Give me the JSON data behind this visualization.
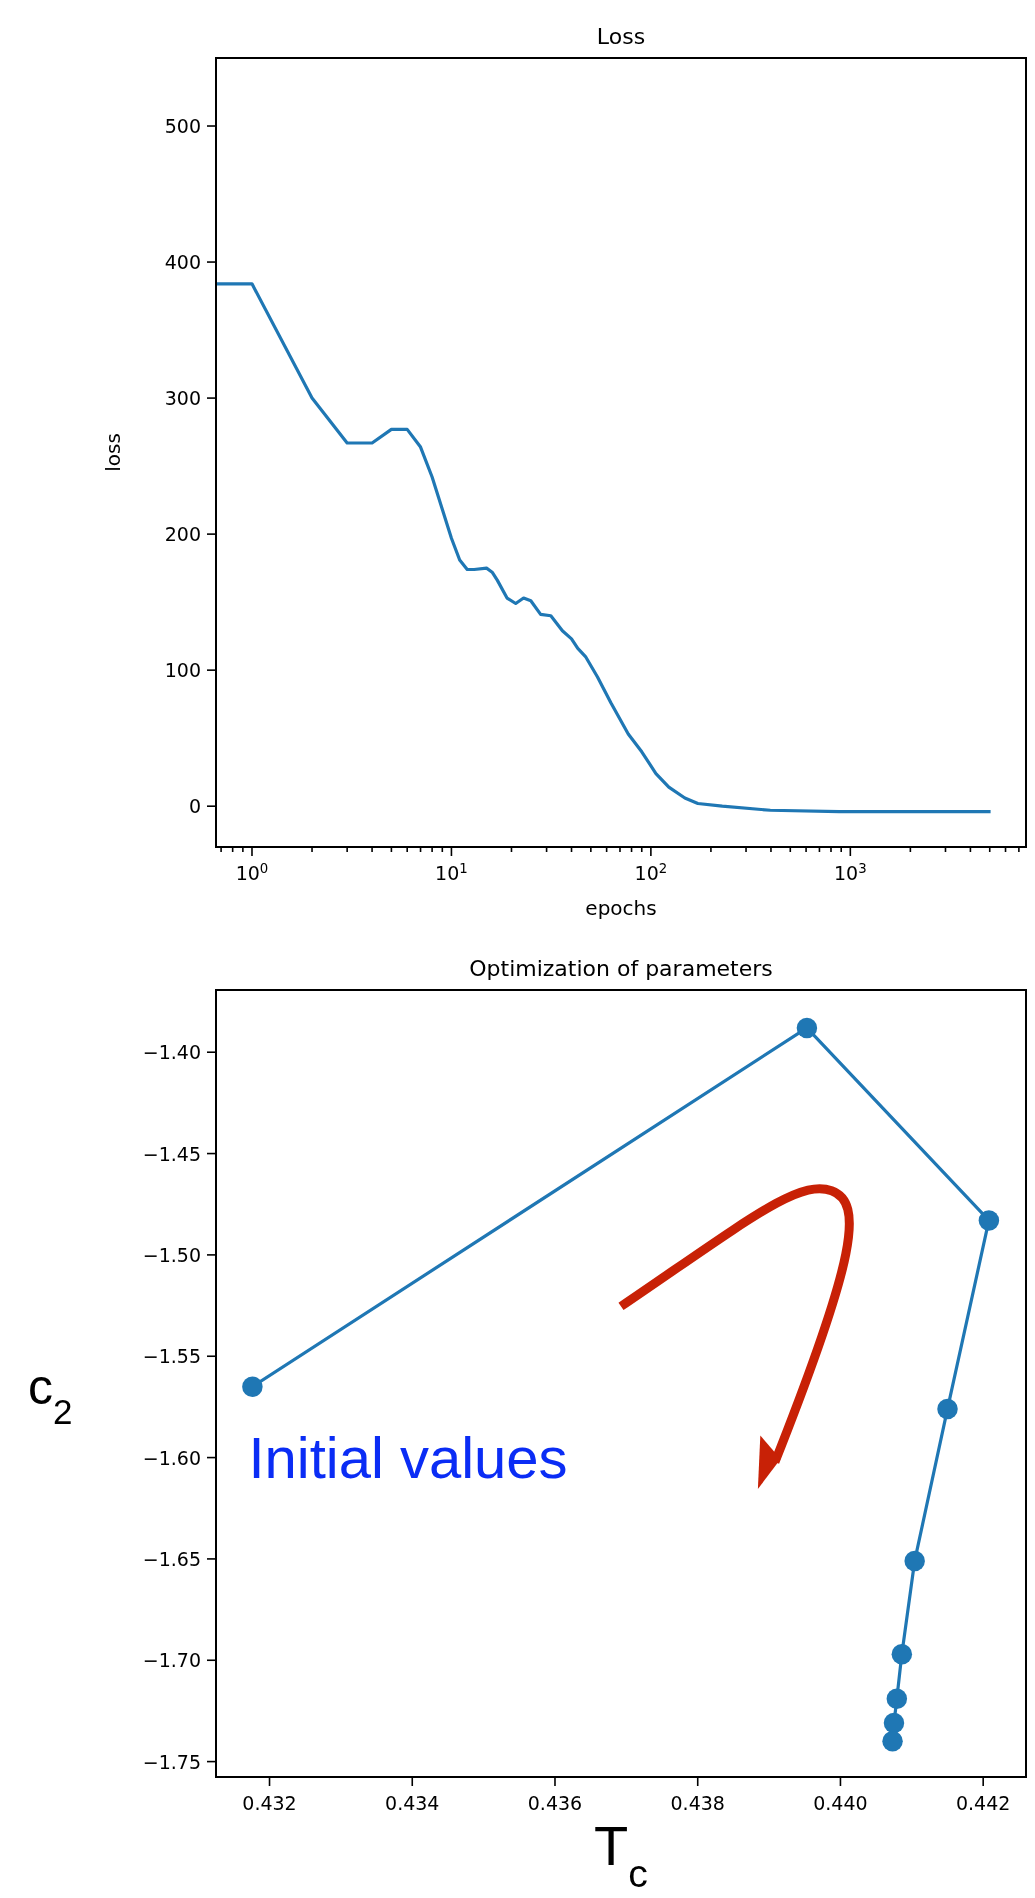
{
  "chart_data": [
    {
      "type": "line",
      "title": "Loss",
      "xlabel": "epochs",
      "ylabel": "loss",
      "log": "x",
      "grid": false,
      "x": [
        0.66,
        1,
        2,
        3,
        4,
        5,
        6,
        7,
        8,
        10,
        11,
        12,
        13,
        15,
        16,
        17,
        19,
        21,
        23,
        25,
        28,
        31.5,
        36,
        40,
        43,
        47,
        54,
        63,
        77,
        90,
        106,
        123,
        148,
        172,
        228,
        397,
        880,
        1630,
        5050
      ],
      "series": [
        {
          "color": "#1f77b4",
          "values": [
            384,
            384,
            300,
            267,
            267,
            277,
            277,
            264,
            242,
            197,
            181,
            174,
            174,
            175,
            172,
            166,
            153,
            149,
            153,
            151,
            141,
            140,
            129,
            123,
            116,
            110,
            95,
            76,
            53,
            40,
            24,
            14,
            6,
            2,
            0,
            -3,
            -4,
            -4,
            -4
          ]
        }
      ],
      "xlim": [
        0.66,
        7600
      ],
      "ylim": [
        -30,
        550
      ],
      "xticks": [
        {
          "value": 0.7,
          "label": null
        },
        {
          "value": 0.8,
          "label": null
        },
        {
          "value": 0.9,
          "label": null
        },
        {
          "value": 1,
          "label": "10$^{0}$"
        },
        {
          "value": 2,
          "label": null
        },
        {
          "value": 3,
          "label": null
        },
        {
          "value": 4,
          "label": null
        },
        {
          "value": 5,
          "label": null
        },
        {
          "value": 6,
          "label": null
        },
        {
          "value": 7,
          "label": null
        },
        {
          "value": 8,
          "label": null
        },
        {
          "value": 9,
          "label": null
        },
        {
          "value": 10,
          "label": "10$^{1}$"
        },
        {
          "value": 20,
          "label": null
        },
        {
          "value": 30,
          "label": null
        },
        {
          "value": 40,
          "label": null
        },
        {
          "value": 50,
          "label": null
        },
        {
          "value": 60,
          "label": null
        },
        {
          "value": 70,
          "label": null
        },
        {
          "value": 80,
          "label": null
        },
        {
          "value": 90,
          "label": null
        },
        {
          "value": 100,
          "label": "10$^{2}$"
        },
        {
          "value": 200,
          "label": null
        },
        {
          "value": 300,
          "label": null
        },
        {
          "value": 400,
          "label": null
        },
        {
          "value": 500,
          "label": null
        },
        {
          "value": 600,
          "label": null
        },
        {
          "value": 700,
          "label": null
        },
        {
          "value": 800,
          "label": null
        },
        {
          "value": 900,
          "label": null
        },
        {
          "value": 1000,
          "label": "10$^{3}$"
        },
        {
          "value": 2000,
          "label": null
        },
        {
          "value": 3000,
          "label": null
        },
        {
          "value": 4000,
          "label": null
        },
        {
          "value": 5000,
          "label": null
        },
        {
          "value": 6000,
          "label": null
        },
        {
          "value": 7000,
          "label": null
        }
      ],
      "yticks": [
        0,
        100,
        200,
        300,
        400,
        500
      ]
    },
    {
      "type": "line",
      "title": "Optimization of parameters",
      "xlabel": "T$_{c}$",
      "ylabel": "c$_{2}$",
      "marker": "circle",
      "grid": false,
      "x": [
        0.43176,
        0.43953,
        0.44208,
        0.4415,
        0.44104,
        0.44086,
        0.44079,
        0.44075,
        0.44073
      ],
      "series": [
        {
          "color": "#1f77b4",
          "values": [
            -1.565,
            -1.388,
            -1.483,
            -1.576,
            -1.651,
            -1.697,
            -1.719,
            -1.731,
            -1.74
          ]
        }
      ],
      "xlim": [
        0.43125,
        0.4426
      ],
      "ylim": [
        -1.7576,
        -1.3693
      ],
      "xticks": [
        {
          "value": 0.432,
          "label": "0.432"
        },
        {
          "value": 0.434,
          "label": "0.434"
        },
        {
          "value": 0.436,
          "label": "0.436"
        },
        {
          "value": 0.438,
          "label": "0.438"
        },
        {
          "value": 0.44,
          "label": "0.440"
        },
        {
          "value": 0.442,
          "label": "0.442"
        }
      ],
      "yticks": [
        {
          "value": -1.4,
          "label": "−1.40"
        },
        {
          "value": -1.45,
          "label": "−1.45"
        },
        {
          "value": -1.5,
          "label": "−1.50"
        },
        {
          "value": -1.55,
          "label": "−1.55"
        },
        {
          "value": -1.6,
          "label": "−1.60"
        },
        {
          "value": -1.65,
          "label": "−1.65"
        },
        {
          "value": -1.7,
          "label": "−1.70"
        },
        {
          "value": -1.75,
          "label": "−1.75"
        }
      ],
      "annotations": [
        "Initial values"
      ]
    }
  ]
}
